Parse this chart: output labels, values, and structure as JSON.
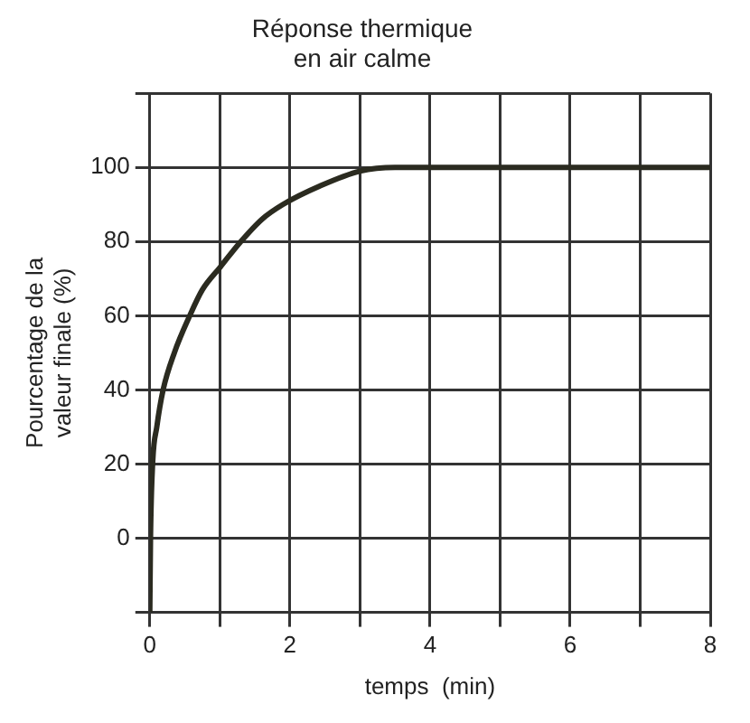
{
  "chart_data": {
    "type": "line",
    "title": "Réponse thermique\nen air calme",
    "xlabel": "temps  (min)",
    "ylabel": "Pourcentage de la\nvaleur finale (%)",
    "x": [
      0,
      0.01,
      0.04,
      0.1,
      0.19,
      0.35,
      0.57,
      0.75,
      1.0,
      1.3,
      1.6,
      1.9,
      2.43,
      3.0,
      3.5,
      4,
      5,
      6,
      7,
      8
    ],
    "series": [
      {
        "color": "#2b2b20",
        "values": [
          -20,
          0,
          20,
          30,
          40,
          50,
          60,
          67,
          73,
          80,
          86,
          90,
          95,
          99,
          100,
          100,
          100,
          100,
          100,
          100
        ]
      }
    ],
    "xlim": [
      0,
      8
    ],
    "xticks": [
      0,
      {
        "value": 1,
        "label": null
      },
      2,
      {
        "value": 3,
        "label": null
      },
      4,
      {
        "value": 5,
        "label": null
      },
      6,
      {
        "value": 7,
        "label": null
      },
      8
    ],
    "ylim": [
      -20,
      120
    ],
    "yticks": [
      {
        "value": -20,
        "label": null
      },
      0,
      20,
      40,
      60,
      80,
      100,
      {
        "value": 120,
        "label": null
      }
    ],
    "grid": true,
    "legend": false,
    "marker": "none",
    "line_style": "solid"
  }
}
